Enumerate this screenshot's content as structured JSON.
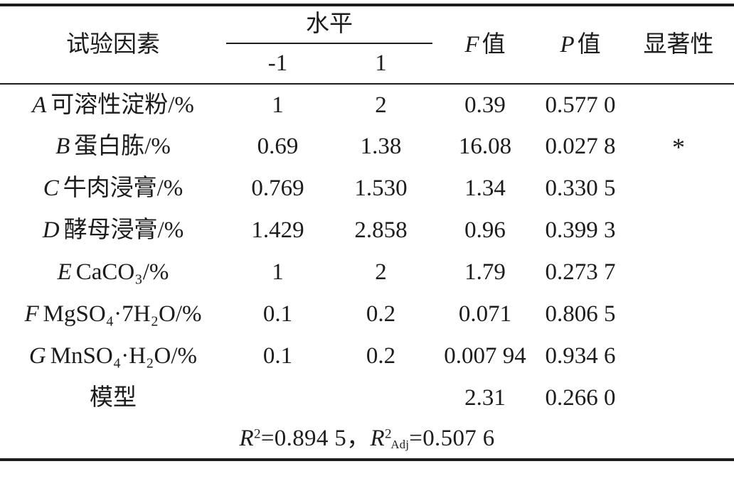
{
  "page": {
    "background": "#ffffff",
    "ink": "#1c1c1c"
  },
  "table": {
    "header": {
      "factor": "试验因素",
      "level_group": "水平",
      "level_low": "-1",
      "level_high": "1",
      "f_letter": "F",
      "f_suffix": "值",
      "p_letter": "P",
      "p_suffix": "值",
      "significance": "显著性"
    },
    "rows": [
      {
        "letter": "A",
        "label": "可溶性淀粉/%",
        "low": "1",
        "high": "2",
        "f": "0.39",
        "p": "0.577 0",
        "sig": ""
      },
      {
        "letter": "B",
        "label": "蛋白胨/%",
        "low": "0.69",
        "high": "1.38",
        "f": "16.08",
        "p": "0.027 8",
        "sig": "*"
      },
      {
        "letter": "C",
        "label": "牛肉浸膏/%",
        "low": "0.769",
        "high": "1.530",
        "f": "1.34",
        "p": "0.330 5",
        "sig": ""
      },
      {
        "letter": "D",
        "label": "酵母浸膏/%",
        "low": "1.429",
        "high": "2.858",
        "f": "0.96",
        "p": "0.399 3",
        "sig": ""
      },
      {
        "letter": "E",
        "label": "CaCO₃/%",
        "low": "1",
        "high": "2",
        "f": "1.79",
        "p": "0.273 7",
        "sig": ""
      },
      {
        "letter": "F",
        "label": "MgSO₄·7H₂O/%",
        "low": "0.1",
        "high": "0.2",
        "f": "0.071",
        "p": "0.806 5",
        "sig": ""
      },
      {
        "letter": "G",
        "label": "MnSO₄·H₂O/%",
        "low": "0.1",
        "high": "0.2",
        "f": "0.007 94",
        "p": "0.934 6",
        "sig": ""
      },
      {
        "letter": "",
        "label": "模型",
        "low": "",
        "high": "",
        "f": "2.31",
        "p": "0.266 0",
        "sig": ""
      }
    ],
    "footer_segments": [
      {
        "style": "italic",
        "text": "R"
      },
      {
        "style": "sup",
        "text": "2"
      },
      {
        "style": "plain",
        "text": "=0.894 5，"
      },
      {
        "style": "italic",
        "text": "R"
      },
      {
        "style": "sup",
        "text": "2"
      },
      {
        "style": "sub",
        "text": "Adj"
      },
      {
        "style": "plain",
        "text": "=0.507 6"
      }
    ]
  }
}
